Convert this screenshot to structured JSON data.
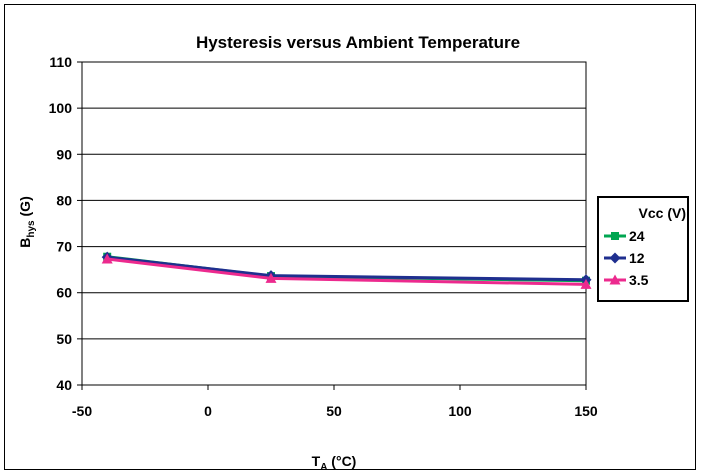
{
  "chart_data": {
    "type": "line",
    "title": "Hysteresis versus Ambient Temperature",
    "ylabel": {
      "main": "B",
      "sub": "hys",
      "unit": " (G)"
    },
    "xlabel": {
      "main": "T",
      "sub": "A",
      "unit": " (°C)"
    },
    "xlim": [
      -50,
      150
    ],
    "ylim": [
      40,
      110
    ],
    "x_ticks": [
      -50,
      0,
      50,
      100,
      150
    ],
    "y_ticks": [
      40,
      50,
      60,
      70,
      80,
      90,
      100,
      110
    ],
    "grid": "horizontal",
    "legend": {
      "title": "Vcc (V)",
      "placement": "right"
    },
    "series": [
      {
        "name": "24",
        "color": "#00a651",
        "marker": "square",
        "x": [
          -40,
          25,
          150
        ],
        "y": [
          67.8,
          63.6,
          62.6
        ]
      },
      {
        "name": "12",
        "color": "#1f2f8f",
        "marker": "diamond",
        "x": [
          -40,
          25,
          150
        ],
        "y": [
          67.7,
          63.7,
          62.8
        ]
      },
      {
        "name": "3.5",
        "color": "#ec2a8e",
        "marker": "triangle",
        "x": [
          -40,
          25,
          150
        ],
        "y": [
          67.3,
          63.1,
          61.8
        ]
      }
    ]
  }
}
